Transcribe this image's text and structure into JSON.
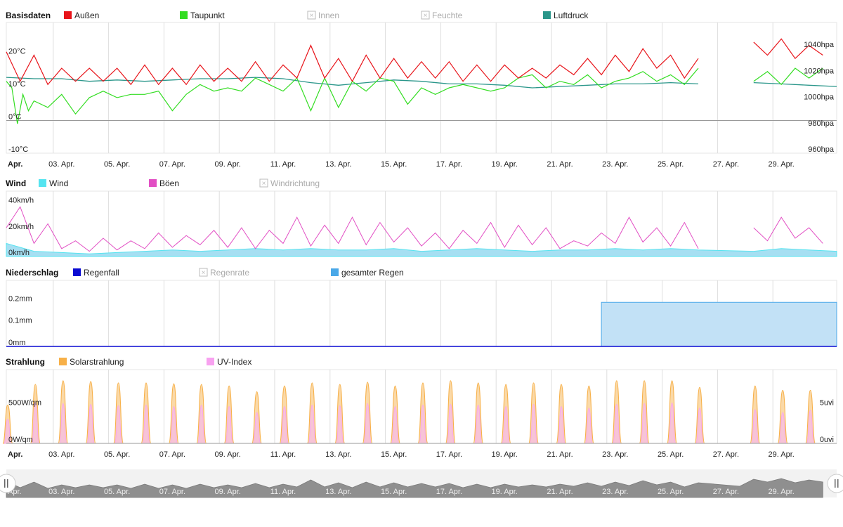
{
  "x_axis": {
    "first_label": "Apr.",
    "labels": [
      "03. Apr.",
      "05. Apr.",
      "07. Apr.",
      "09. Apr.",
      "11. Apr.",
      "13. Apr.",
      "15. Apr.",
      "17. Apr.",
      "19. Apr.",
      "21. Apr.",
      "23. Apr.",
      "25. Apr.",
      "27. Apr.",
      "29. Apr."
    ],
    "label_days": [
      3,
      5,
      7,
      9,
      11,
      13,
      15,
      17,
      19,
      21,
      23,
      25,
      27,
      29
    ],
    "range_days": [
      1,
      31
    ]
  },
  "colors": {
    "aussen": "#e8141a",
    "taupunkt": "#33dd22",
    "luftdruck": "#2a968a",
    "wind": "#55e4f0",
    "wind_fill": "#a6dff2",
    "boeen": "#e24fc4",
    "regenfall": "#0a0ad2",
    "gesamter_regen": "#4aa8e8",
    "gesamter_regen_fill": "#c2e1f6",
    "solar": "#f7b048",
    "solar_fill": "#fad9a8",
    "uv": "#f8a2f0",
    "uv_fill": "#f7c4d6",
    "grid": "#dedede",
    "navigator": "#999999"
  },
  "charts": [
    {
      "id": "basisdaten",
      "title": "Basisdaten",
      "legend": [
        {
          "label": "Außen",
          "color": "#e8141a",
          "enabled": true
        },
        {
          "label": "Taupunkt",
          "color": "#33dd22",
          "enabled": true
        },
        {
          "label": "Innen",
          "enabled": false
        },
        {
          "label": "Feuchte",
          "enabled": false
        },
        {
          "label": "Luftdruck",
          "color": "#2a968a",
          "enabled": true
        }
      ],
      "y_left": {
        "labels": [
          "20°C",
          "10°C",
          "0°C",
          "-10°C"
        ],
        "values": [
          20,
          10,
          0,
          -10
        ],
        "range": [
          -10,
          30
        ]
      },
      "y_right": {
        "labels": [
          "1040hpa",
          "1020hpa",
          "1000hpa",
          "980hpa",
          "960hpa"
        ],
        "values": [
          1040,
          1020,
          1000,
          980,
          960
        ],
        "range": [
          960,
          1060
        ]
      }
    },
    {
      "id": "wind",
      "title": "Wind",
      "legend": [
        {
          "label": "Wind",
          "color": "#55e4f0",
          "enabled": true
        },
        {
          "label": "Böen",
          "color": "#e24fc4",
          "enabled": true
        },
        {
          "label": "Windrichtung",
          "enabled": false
        }
      ],
      "y_left": {
        "labels": [
          "40km/h",
          "20km/h",
          "0km/h"
        ],
        "values": [
          40,
          20,
          0
        ],
        "range": [
          0,
          50
        ]
      }
    },
    {
      "id": "niederschlag",
      "title": "Niederschlag",
      "legend": [
        {
          "label": "Regenfall",
          "color": "#0a0ad2",
          "enabled": true
        },
        {
          "label": "Regenrate",
          "enabled": false
        },
        {
          "label": "gesamter Regen",
          "color": "#4aa8e8",
          "enabled": true
        }
      ],
      "y_left": {
        "labels": [
          "0.2mm",
          "0.1mm",
          "0mm"
        ],
        "values": [
          0.2,
          0.1,
          0
        ],
        "range": [
          0,
          0.3
        ]
      }
    },
    {
      "id": "strahlung",
      "title": "Strahlung",
      "legend": [
        {
          "label": "Solarstrahlung",
          "color": "#f7b048",
          "enabled": true
        },
        {
          "label": "UV-Index",
          "color": "#f8a2f0",
          "enabled": true
        }
      ],
      "y_left": {
        "labels": [
          "500W/qm",
          "0W/qm"
        ],
        "values": [
          500,
          0
        ],
        "range": [
          0,
          1000
        ]
      },
      "y_right": {
        "labels": [
          "5uvi",
          "0uvi"
        ],
        "values": [
          5,
          0
        ],
        "range": [
          0,
          10
        ]
      }
    }
  ],
  "chart_data": [
    {
      "type": "line",
      "title": "Basisdaten",
      "x_unit": "day of April",
      "series": [
        {
          "name": "Außen",
          "unit": "°C",
          "x": [
            1,
            1.5,
            2,
            2.5,
            3,
            3.5,
            4,
            4.5,
            5,
            5.5,
            6,
            6.5,
            7,
            7.5,
            8,
            8.5,
            9,
            9.5,
            10,
            10.5,
            11,
            11.5,
            12,
            12.5,
            13,
            13.5,
            14,
            14.5,
            15,
            15.5,
            16,
            16.5,
            17,
            17.5,
            18,
            18.5,
            19,
            19.5,
            20,
            20.5,
            21,
            21.5,
            22,
            22.5,
            23,
            23.5,
            24,
            24.5,
            25,
            25.5,
            26,
            27.5,
            28,
            28.5,
            29,
            29.5,
            30,
            30.5
          ],
          "y": [
            21,
            12,
            20,
            11,
            16,
            12,
            16,
            12,
            16,
            11,
            17,
            11,
            16,
            11,
            17,
            12,
            16,
            12,
            18,
            12,
            17,
            13,
            23,
            13,
            19,
            12,
            20,
            13,
            19,
            13,
            18,
            13,
            18,
            12,
            17,
            12,
            17,
            13,
            16,
            13,
            17,
            14,
            19,
            14,
            20,
            15,
            22,
            16,
            20,
            13,
            19,
            null,
            24,
            20,
            25,
            19,
            23,
            20
          ]
        },
        {
          "name": "Taupunkt",
          "unit": "°C",
          "x": [
            1,
            1.2,
            1.4,
            1.6,
            1.8,
            2,
            2.5,
            3,
            3.5,
            4,
            4.5,
            5,
            5.5,
            6,
            6.5,
            7,
            7.5,
            8,
            8.5,
            9,
            9.5,
            10,
            10.5,
            11,
            11.5,
            12,
            12.5,
            13,
            13.5,
            14,
            14.5,
            15,
            15.5,
            16,
            16.5,
            17,
            17.5,
            18,
            18.5,
            19,
            19.5,
            20,
            20.5,
            21,
            21.5,
            22,
            22.5,
            23,
            23.5,
            24,
            24.5,
            25,
            25.5,
            26,
            27.5,
            28,
            28.5,
            29,
            29.5,
            30,
            30.5
          ],
          "y": [
            12,
            10,
            -1,
            8,
            3,
            6,
            4,
            8,
            2,
            7,
            9,
            7,
            8,
            8,
            9,
            3,
            8,
            11,
            9,
            10,
            9,
            13,
            11,
            9,
            13,
            3,
            13,
            4,
            12,
            9,
            13,
            12,
            5,
            10,
            8,
            10,
            11,
            10,
            9,
            10,
            13,
            14,
            10,
            12,
            11,
            14,
            10,
            12,
            13,
            15,
            12,
            14,
            11,
            16,
            null,
            12,
            15,
            11,
            16,
            13,
            16
          ]
        },
        {
          "name": "Luftdruck",
          "unit": "hPa",
          "x": [
            1,
            2,
            3,
            4,
            5,
            6,
            7,
            8,
            9,
            10,
            11,
            12,
            13,
            14,
            15,
            16,
            17,
            18,
            19,
            20,
            21,
            22,
            23,
            24,
            25,
            26,
            27,
            28,
            29,
            30,
            31
          ],
          "y": [
            1018,
            1017,
            1017,
            1015,
            1016,
            1015,
            1016,
            1017,
            1017,
            1018,
            1017,
            1014,
            1012,
            1014,
            1016,
            1015,
            1013,
            1013,
            1012,
            1010,
            1011,
            1012,
            1013,
            1013,
            1014,
            1013,
            null,
            1014,
            1013,
            1012,
            1011
          ]
        }
      ]
    },
    {
      "type": "area",
      "title": "Wind",
      "x_unit": "day of April",
      "series": [
        {
          "name": "Böen",
          "unit": "km/h",
          "x": [
            1,
            1.5,
            2,
            2.5,
            3,
            3.5,
            4,
            4.5,
            5,
            5.5,
            6,
            6.5,
            7,
            7.5,
            8,
            8.5,
            9,
            9.5,
            10,
            10.5,
            11,
            11.5,
            12,
            12.5,
            13,
            13.5,
            14,
            14.5,
            15,
            15.5,
            16,
            16.5,
            17,
            17.5,
            18,
            18.5,
            19,
            19.5,
            20,
            20.5,
            21,
            21.5,
            22,
            22.5,
            23,
            23.5,
            24,
            24.5,
            25,
            25.5,
            26,
            27.5,
            28,
            28.5,
            29,
            29.5,
            30,
            30.5
          ],
          "y": [
            22,
            38,
            10,
            25,
            6,
            12,
            4,
            14,
            5,
            12,
            6,
            18,
            7,
            16,
            9,
            20,
            7,
            22,
            6,
            20,
            10,
            30,
            8,
            24,
            10,
            30,
            9,
            26,
            11,
            22,
            8,
            18,
            6,
            20,
            10,
            26,
            7,
            24,
            9,
            22,
            6,
            12,
            8,
            18,
            10,
            30,
            11,
            22,
            8,
            26,
            6,
            null,
            22,
            12,
            30,
            14,
            22,
            10
          ]
        },
        {
          "name": "Wind",
          "unit": "km/h",
          "x": [
            1,
            2,
            3,
            4,
            5,
            6,
            7,
            8,
            9,
            10,
            11,
            12,
            13,
            14,
            15,
            16,
            17,
            18,
            19,
            20,
            21,
            22,
            23,
            24,
            25,
            26,
            28,
            29,
            30,
            31
          ],
          "y": [
            10,
            4,
            3,
            2,
            3,
            4,
            5,
            4,
            5,
            6,
            5,
            6,
            5,
            5,
            6,
            4,
            5,
            6,
            5,
            4,
            5,
            5,
            6,
            5,
            6,
            5,
            4,
            6,
            5,
            4
          ]
        }
      ]
    },
    {
      "type": "area",
      "title": "Niederschlag",
      "x_unit": "day of April",
      "series": [
        {
          "name": "Regenfall",
          "unit": "mm",
          "x": [
            1,
            31
          ],
          "y": [
            0,
            0
          ]
        },
        {
          "name": "gesamter Regen",
          "unit": "mm",
          "x": [
            1,
            22.5,
            22.5,
            31
          ],
          "y": [
            0,
            0,
            0.2,
            0.2
          ]
        }
      ]
    },
    {
      "type": "area",
      "title": "Strahlung",
      "x_unit": "day of April",
      "series": [
        {
          "name": "Solarstrahlung",
          "unit": "W/qm",
          "x": [
            1,
            2,
            3,
            4,
            5,
            6,
            7,
            8,
            9,
            10,
            11,
            12,
            13,
            14,
            15,
            16,
            17,
            18,
            19,
            20,
            21,
            22,
            23,
            24,
            25,
            26,
            28,
            29,
            30
          ],
          "y": [
            520,
            800,
            850,
            840,
            820,
            820,
            810,
            800,
            780,
            700,
            780,
            820,
            800,
            830,
            780,
            820,
            850,
            820,
            800,
            820,
            800,
            780,
            850,
            850,
            850,
            760,
            780,
            720,
            720
          ]
        },
        {
          "name": "UV-Index",
          "unit": "uvi",
          "x": [
            1,
            2,
            3,
            4,
            5,
            6,
            7,
            8,
            9,
            10,
            11,
            12,
            13,
            14,
            15,
            16,
            17,
            18,
            19,
            20,
            21,
            22,
            23,
            24,
            25,
            26,
            28,
            29,
            30
          ],
          "y": [
            3.3,
            5.5,
            5.4,
            5.3,
            5.1,
            5.2,
            5.0,
            5.2,
            5.0,
            4.2,
            5.0,
            5.2,
            5.1,
            5.4,
            5.0,
            5.2,
            5.3,
            5.2,
            5.0,
            5.3,
            5.0,
            4.8,
            5.3,
            5.4,
            5.5,
            4.8,
            4.6,
            4.2,
            4.5
          ]
        }
      ]
    }
  ]
}
